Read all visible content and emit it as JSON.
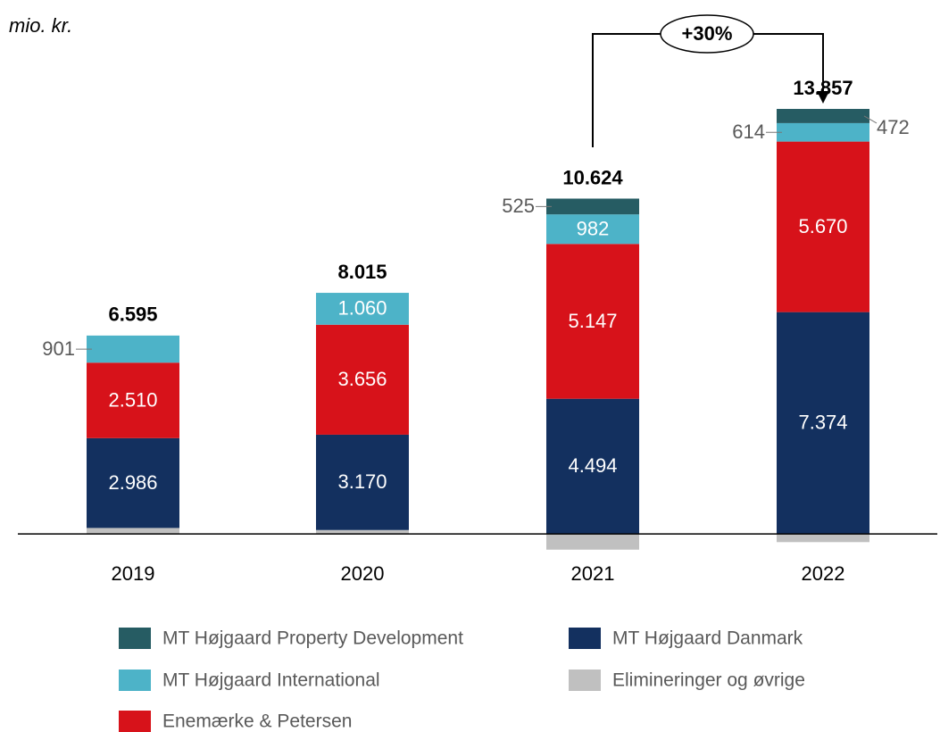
{
  "chart_data": {
    "type": "stacked-bar",
    "unit_label": "mio. kr.",
    "annotation": "+30%",
    "categories": [
      "2019",
      "2020",
      "2021",
      "2022"
    ],
    "ylim": [
      -650,
      15080
    ],
    "series": [
      {
        "name": "MT Højgaard Property Development",
        "color": "#265c63",
        "values": [
          null,
          null,
          525,
          472
        ],
        "value_labels": [
          null,
          null,
          "525",
          "472"
        ]
      },
      {
        "name": "MT Højgaard Danmark",
        "color": "#13305f",
        "values": [
          2986,
          3170,
          4494,
          7374
        ],
        "value_labels": [
          "2.986",
          "3.170",
          "4.494",
          "7.374"
        ]
      },
      {
        "name": "MT Højgaard International",
        "color": "#4db3c8",
        "values": [
          901,
          1060,
          982,
          614
        ],
        "value_labels": [
          "901",
          "1.060",
          "982",
          "614"
        ]
      },
      {
        "name": "Elimineringer og øvrige",
        "color": "#c0c0c0",
        "values": [
          198,
          129,
          -524,
          -273
        ]
      },
      {
        "name": "Enemærke & Petersen",
        "color": "#d7121a",
        "values": [
          2510,
          3656,
          5147,
          5670
        ],
        "value_labels": [
          "2.510",
          "3.656",
          "5.147",
          "5.670"
        ]
      }
    ],
    "totals": {
      "values": [
        6595,
        8015,
        10624,
        13857
      ],
      "value_labels": [
        "6.595",
        "8.015",
        "10.624",
        "13.857"
      ]
    }
  }
}
